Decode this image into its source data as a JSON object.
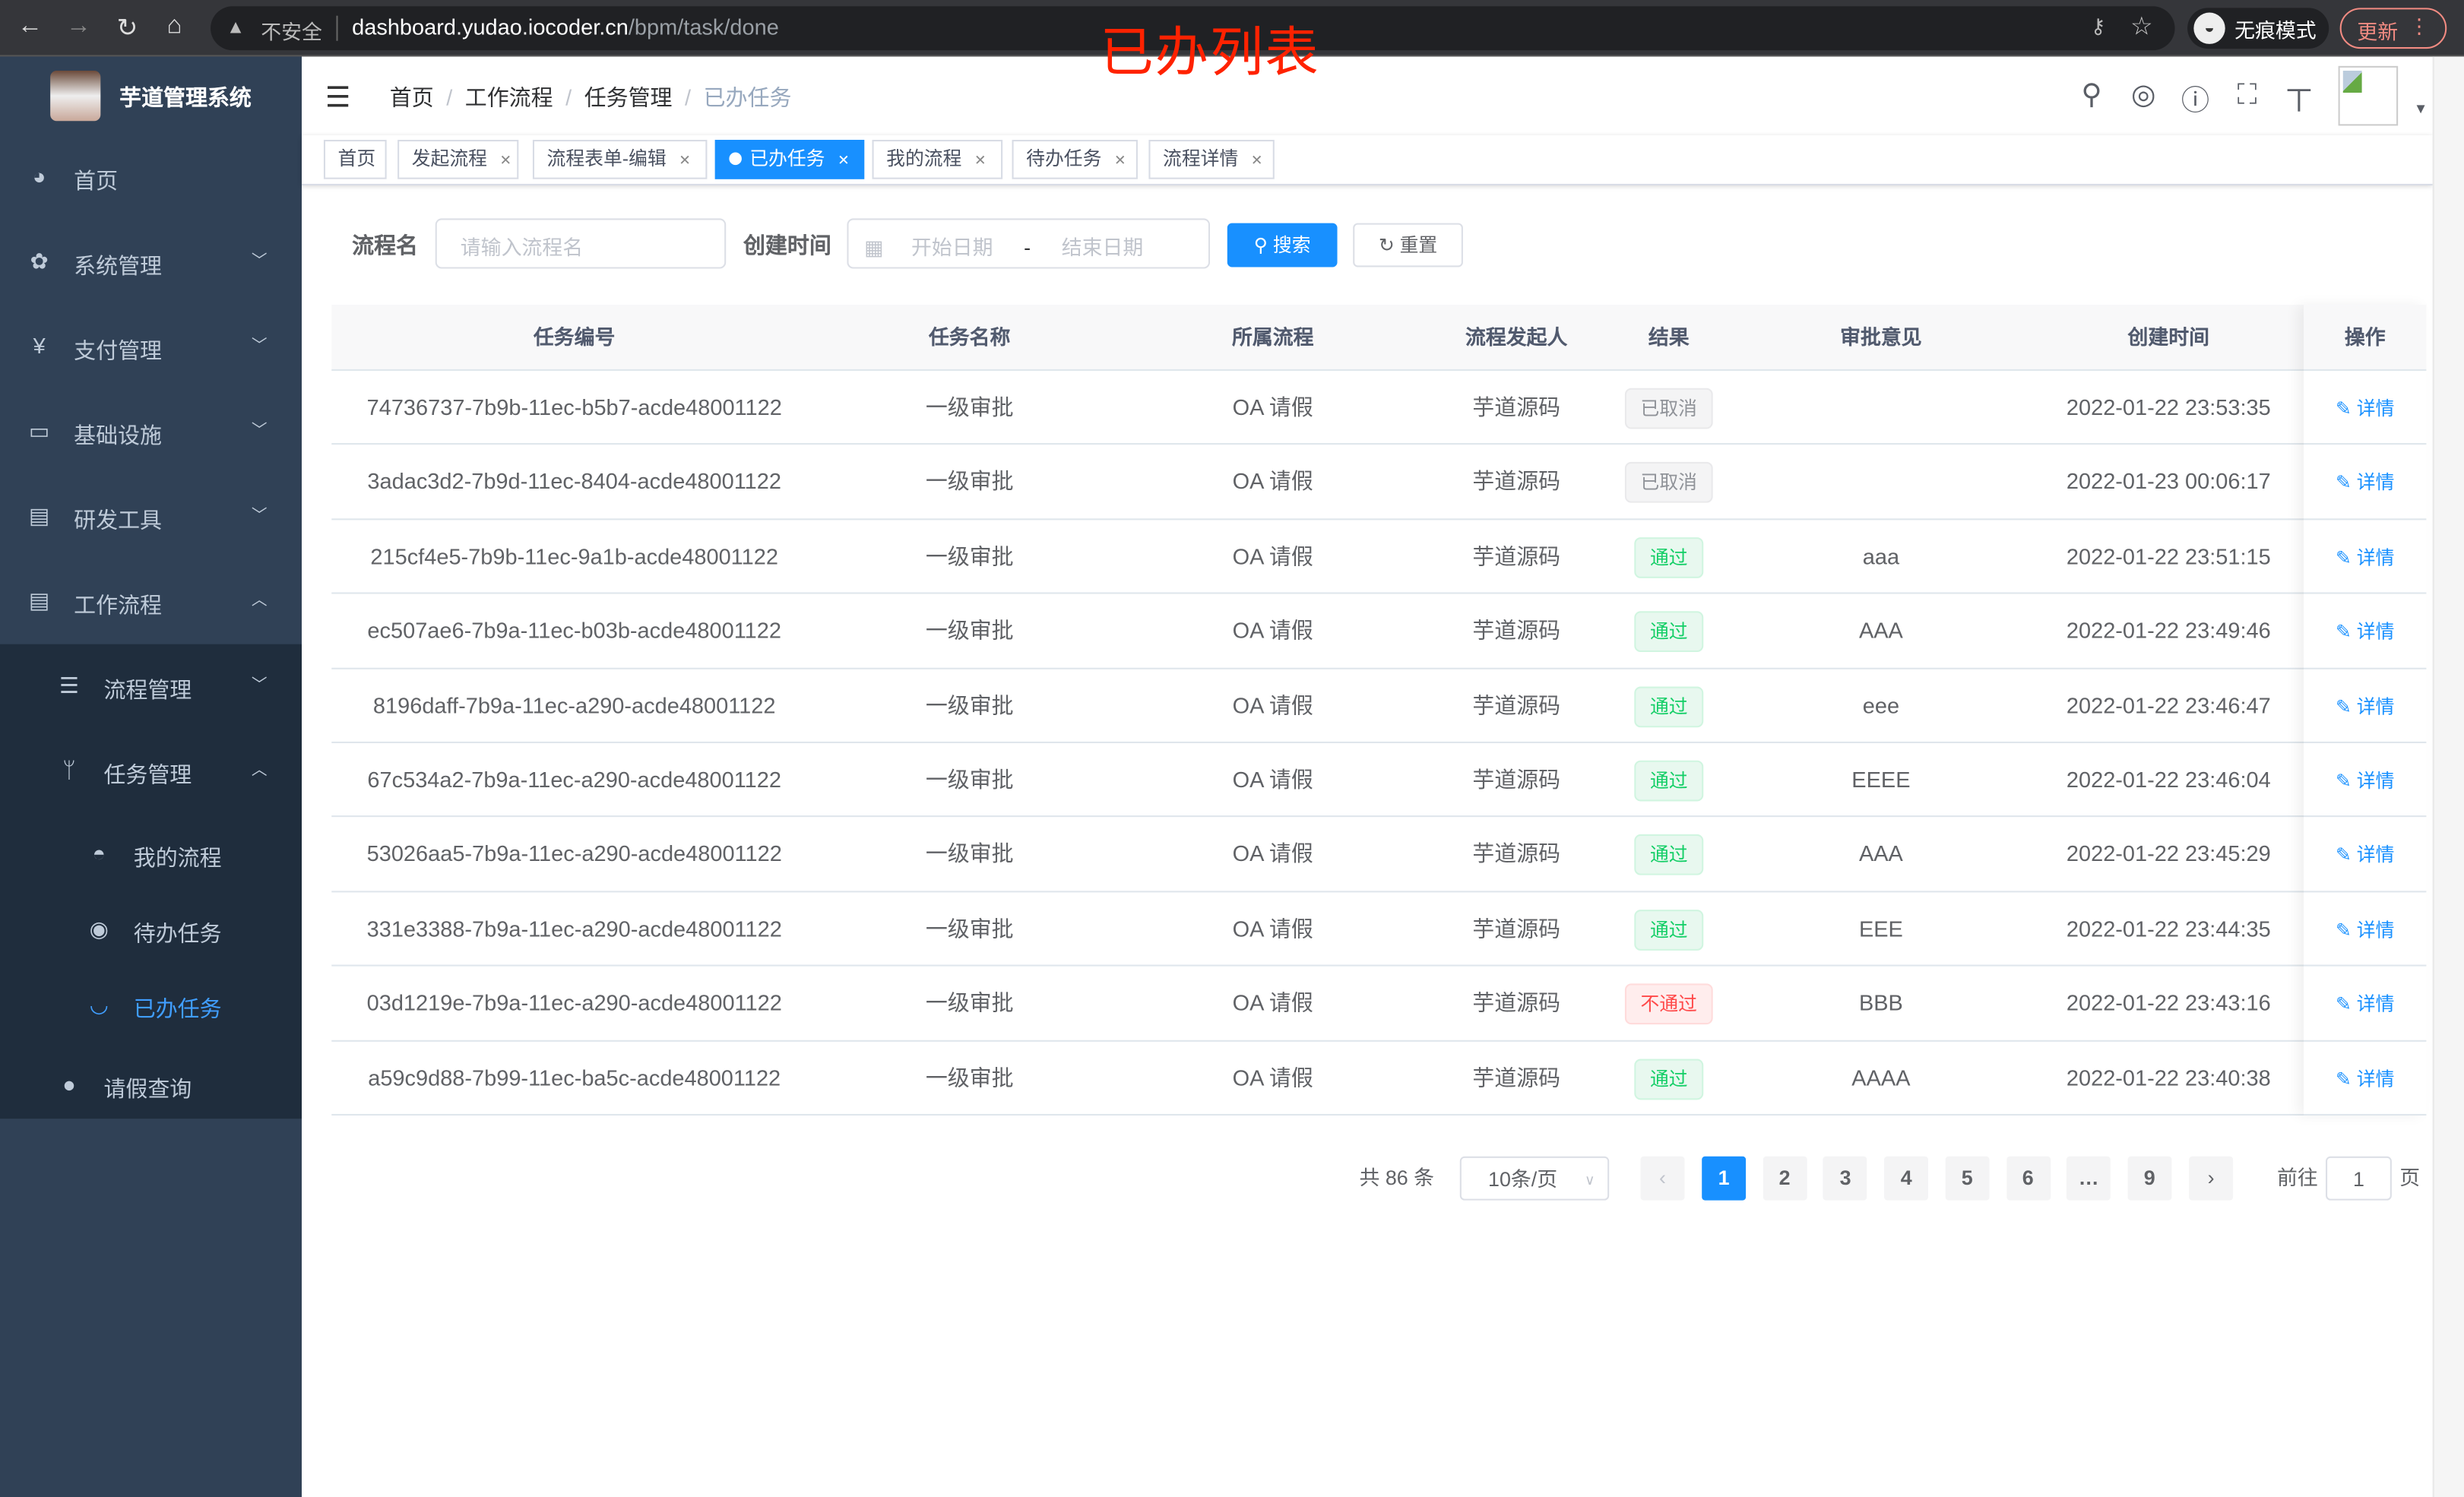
{
  "browser": {
    "insecure": "不安全",
    "url_host": "dashboard.yudao.iocoder.cn",
    "url_path": "/bpm/task/done",
    "incognito": "无痕模式",
    "update": "更新"
  },
  "annotation": "已办列表",
  "sidebar": {
    "title": "芋道管理系统",
    "items": [
      {
        "label": "首页",
        "icon": "dashboard-icon"
      },
      {
        "label": "系统管理",
        "icon": "gear-icon"
      },
      {
        "label": "支付管理",
        "icon": "yen-icon"
      },
      {
        "label": "基础设施",
        "icon": "monitor-icon"
      },
      {
        "label": "研发工具",
        "icon": "toolbox-icon"
      },
      {
        "label": "工作流程",
        "icon": "toolbox-icon"
      },
      {
        "label": "流程管理",
        "icon": "list-icon"
      },
      {
        "label": "任务管理",
        "icon": "tree-icon"
      },
      {
        "label": "我的流程",
        "icon": "people-icon"
      },
      {
        "label": "待办任务",
        "icon": "eye-open-icon"
      },
      {
        "label": "已办任务",
        "icon": "eye-closed-icon"
      },
      {
        "label": "请假查询",
        "icon": "user-icon"
      }
    ]
  },
  "breadcrumb": [
    "首页",
    "工作流程",
    "任务管理",
    "已办任务"
  ],
  "tags": [
    {
      "label": "首页"
    },
    {
      "label": "发起流程"
    },
    {
      "label": "流程表单-编辑"
    },
    {
      "label": "已办任务"
    },
    {
      "label": "我的流程"
    },
    {
      "label": "待办任务"
    },
    {
      "label": "流程详情"
    }
  ],
  "filter": {
    "name_label": "流程名",
    "name_placeholder": "请输入流程名",
    "time_label": "创建时间",
    "start_placeholder": "开始日期",
    "range_sep": "-",
    "end_placeholder": "结束日期",
    "search": "搜索",
    "reset": "重置"
  },
  "table": {
    "columns": [
      "任务编号",
      "任务名称",
      "所属流程",
      "流程发起人",
      "结果",
      "审批意见",
      "创建时间",
      "操作"
    ],
    "rows": [
      [
        "74736737-7b9b-11ec-b5b7-acde48001122",
        "一级审批",
        "OA 请假",
        "芋道源码",
        "已取消",
        "",
        "2022-01-22 23:53:35",
        "详情"
      ],
      [
        "3adac3d2-7b9d-11ec-8404-acde48001122",
        "一级审批",
        "OA 请假",
        "芋道源码",
        "已取消",
        "",
        "2022-01-23 00:06:17",
        "详情"
      ],
      [
        "215cf4e5-7b9b-11ec-9a1b-acde48001122",
        "一级审批",
        "OA 请假",
        "芋道源码",
        "通过",
        "aaa",
        "2022-01-22 23:51:15",
        "详情"
      ],
      [
        "ec507ae6-7b9a-11ec-b03b-acde48001122",
        "一级审批",
        "OA 请假",
        "芋道源码",
        "通过",
        "AAA",
        "2022-01-22 23:49:46",
        "详情"
      ],
      [
        "8196daff-7b9a-11ec-a290-acde48001122",
        "一级审批",
        "OA 请假",
        "芋道源码",
        "通过",
        "eee",
        "2022-01-22 23:46:47",
        "详情"
      ],
      [
        "67c534a2-7b9a-11ec-a290-acde48001122",
        "一级审批",
        "OA 请假",
        "芋道源码",
        "通过",
        "EEEE",
        "2022-01-22 23:46:04",
        "详情"
      ],
      [
        "53026aa5-7b9a-11ec-a290-acde48001122",
        "一级审批",
        "OA 请假",
        "芋道源码",
        "通过",
        "AAA",
        "2022-01-22 23:45:29",
        "详情"
      ],
      [
        "331e3388-7b9a-11ec-a290-acde48001122",
        "一级审批",
        "OA 请假",
        "芋道源码",
        "通过",
        "EEE",
        "2022-01-22 23:44:35",
        "详情"
      ],
      [
        "03d1219e-7b9a-11ec-a290-acde48001122",
        "一级审批",
        "OA 请假",
        "芋道源码",
        "不通过",
        "BBB",
        "2022-01-22 23:43:16",
        "详情"
      ],
      [
        "a59c9d88-7b99-11ec-ba5c-acde48001122",
        "一级审批",
        "OA 请假",
        "芋道源码",
        "通过",
        "AAAA",
        "2022-01-22 23:40:38",
        "详情"
      ]
    ]
  },
  "pagination": {
    "total": "共 86 条",
    "page_size": "10条/页",
    "pages": [
      "1",
      "2",
      "3",
      "4",
      "5",
      "6",
      "…",
      "9"
    ],
    "current": "1",
    "goto_label": "前往",
    "goto_value": "1",
    "goto_suffix": "页"
  },
  "colors": {
    "accent": "#1890ff",
    "sidebar": "#304156",
    "submenu": "#1f2d3d",
    "pass": "#13ce66",
    "fail": "#ff4949",
    "cancel": "#909399",
    "annotation": "#ff2200"
  }
}
